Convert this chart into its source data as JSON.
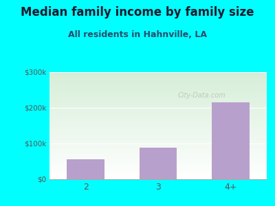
{
  "title": "Median family income by family size",
  "subtitle": "All residents in Hahnville, LA",
  "categories": [
    "2",
    "3",
    "4+"
  ],
  "values": [
    55000,
    88000,
    215000
  ],
  "bar_color": "#b8a0cc",
  "ylim": [
    0,
    300000
  ],
  "yticks": [
    0,
    100000,
    200000,
    300000
  ],
  "ytick_labels": [
    "$0",
    "$100k",
    "$200k",
    "$300k"
  ],
  "background_outer": "#00ffff",
  "background_inner_top": "#d6eed8",
  "background_inner_bottom": "#ffffff",
  "title_fontsize": 12,
  "subtitle_fontsize": 9,
  "watermark": "City-Data.com",
  "title_color": "#1a1a2e",
  "subtitle_color": "#2d4a6b",
  "tick_color": "#555555",
  "grid_color": "#ffffff",
  "bottom_spine_color": "#aaaaaa"
}
